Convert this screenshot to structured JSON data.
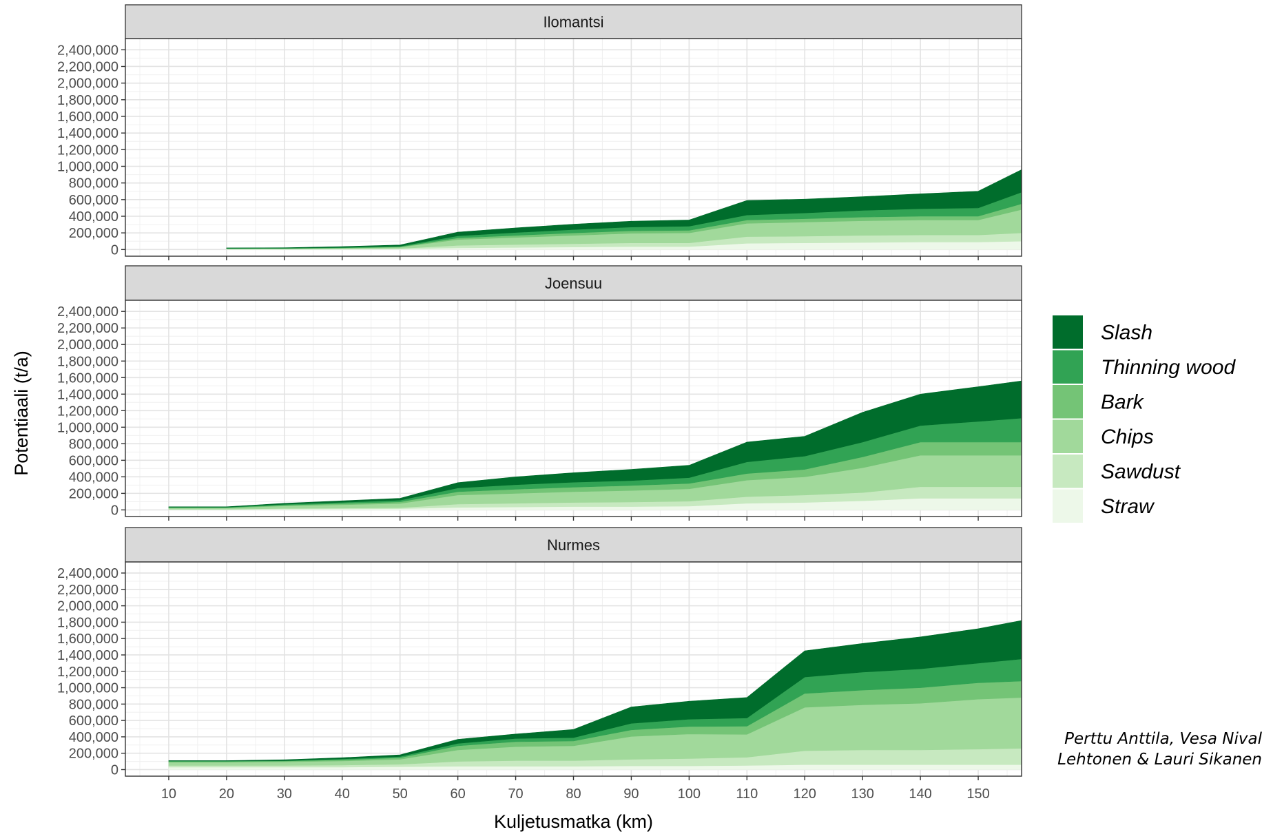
{
  "chart_data": {
    "type": "area",
    "stacked": true,
    "xlabel": "Kuljetusmatka (km)",
    "ylabel": "Potentiaali (t/a)",
    "xlim": [
      2.5,
      157.5
    ],
    "ylim": [
      -80000,
      2535000
    ],
    "x_ticks": [
      10,
      20,
      30,
      40,
      50,
      60,
      70,
      80,
      90,
      100,
      110,
      120,
      130,
      140,
      150
    ],
    "y_ticks": [
      0,
      200000,
      400000,
      600000,
      800000,
      1000000,
      1200000,
      1400000,
      1600000,
      1800000,
      2000000,
      2200000,
      2400000
    ],
    "y_tick_labels": [
      "0",
      "200,000",
      "400,000",
      "600,000",
      "800,000",
      "1,000,000",
      "1,200,000",
      "1,400,000",
      "1,600,000",
      "1,800,000",
      "2,000,000",
      "2,200,000",
      "2,400,000"
    ],
    "grid": true,
    "legend_position": "right",
    "legend": [
      "Slash",
      "Thinning wood",
      "Bark",
      "Chips",
      "Sawdust",
      "Straw"
    ],
    "series_colors": {
      "Straw": "#edf8e9",
      "Sawdust": "#c7e9c0",
      "Chips": "#a1d99b",
      "Bark": "#74c476",
      "Thinning wood": "#31a354",
      "Slash": "#006d2c"
    },
    "panels": [
      {
        "title": "Ilomantsi",
        "x": [
          20,
          30,
          40,
          50,
          60,
          70,
          80,
          90,
          100,
          110,
          120,
          130,
          140,
          150,
          157.5
        ],
        "series": [
          {
            "name": "Straw",
            "values": [
              3000,
              3000,
              5000,
              8000,
              20000,
              25000,
              30000,
              35000,
              35000,
              75000,
              80000,
              85000,
              90000,
              90000,
              100000
            ]
          },
          {
            "name": "Sawdust",
            "values": [
              2000,
              2000,
              3000,
              5000,
              30000,
              35000,
              40000,
              45000,
              45000,
              80000,
              80000,
              85000,
              85000,
              85000,
              100000
            ]
          },
          {
            "name": "Chips",
            "values": [
              5000,
              7000,
              10000,
              15000,
              70000,
              85000,
              100000,
              115000,
              120000,
              160000,
              170000,
              175000,
              180000,
              180000,
              280000
            ]
          },
          {
            "name": "Bark",
            "values": [
              2000,
              2000,
              3000,
              5000,
              20000,
              25000,
              30000,
              30000,
              30000,
              40000,
              40000,
              45000,
              45000,
              45000,
              70000
            ]
          },
          {
            "name": "Thinning wood",
            "values": [
              3000,
              3000,
              5000,
              7000,
              25000,
              35000,
              40000,
              45000,
              50000,
              60000,
              70000,
              80000,
              90000,
              100000,
              140000
            ]
          },
          {
            "name": "Slash",
            "values": [
              5000,
              5000,
              10000,
              15000,
              45000,
              55000,
              65000,
              70000,
              75000,
              175000,
              165000,
              165000,
              180000,
              200000,
              270000
            ]
          }
        ]
      },
      {
        "title": "Joensuu",
        "x": [
          10,
          20,
          30,
          40,
          50,
          60,
          70,
          80,
          90,
          100,
          110,
          120,
          130,
          140,
          150,
          157.5
        ],
        "series": [
          {
            "name": "Straw",
            "values": [
              5000,
              5000,
              10000,
              12000,
              15000,
              30000,
              35000,
              40000,
              40000,
              45000,
              80000,
              90000,
              110000,
              140000,
              140000,
              140000
            ]
          },
          {
            "name": "Sawdust",
            "values": [
              3000,
              3000,
              8000,
              10000,
              12000,
              40000,
              45000,
              50000,
              55000,
              60000,
              80000,
              90000,
              100000,
              140000,
              140000,
              140000
            ]
          },
          {
            "name": "Chips",
            "values": [
              15000,
              15000,
              30000,
              40000,
              50000,
              110000,
              120000,
              130000,
              140000,
              150000,
              200000,
              220000,
              300000,
              380000,
              380000,
              380000
            ]
          },
          {
            "name": "Bark",
            "values": [
              5000,
              5000,
              10000,
              15000,
              20000,
              40000,
              50000,
              55000,
              60000,
              65000,
              80000,
              90000,
              130000,
              160000,
              160000,
              160000
            ]
          },
          {
            "name": "Thinning wood",
            "values": [
              5000,
              5000,
              10000,
              15000,
              20000,
              45000,
              55000,
              60000,
              60000,
              70000,
              140000,
              160000,
              180000,
              200000,
              250000,
              290000
            ]
          },
          {
            "name": "Slash",
            "values": [
              5000,
              5000,
              12000,
              18000,
              23000,
              65000,
              95000,
              115000,
              135000,
              150000,
              240000,
              240000,
              360000,
              380000,
              420000,
              450000
            ]
          }
        ]
      },
      {
        "title": "Nurmes",
        "x": [
          10,
          20,
          30,
          40,
          50,
          60,
          70,
          80,
          90,
          100,
          110,
          120,
          130,
          140,
          150,
          157.5
        ],
        "series": [
          {
            "name": "Straw",
            "values": [
              30000,
              30000,
              30000,
              30000,
              35000,
              40000,
              40000,
              40000,
              45000,
              45000,
              50000,
              60000,
              60000,
              60000,
              60000,
              60000
            ]
          },
          {
            "name": "Sawdust",
            "values": [
              20000,
              20000,
              20000,
              25000,
              30000,
              60000,
              70000,
              70000,
              80000,
              90000,
              100000,
              170000,
              180000,
              180000,
              190000,
              200000
            ]
          },
          {
            "name": "Chips",
            "values": [
              40000,
              40000,
              45000,
              50000,
              60000,
              140000,
              170000,
              180000,
              280000,
              300000,
              280000,
              530000,
              550000,
              570000,
              610000,
              620000
            ]
          },
          {
            "name": "Bark",
            "values": [
              10000,
              10000,
              10000,
              15000,
              20000,
              50000,
              60000,
              60000,
              80000,
              90000,
              100000,
              170000,
              180000,
              190000,
              200000,
              200000
            ]
          },
          {
            "name": "Thinning wood",
            "values": [
              5000,
              5000,
              5000,
              10000,
              15000,
              30000,
              40000,
              40000,
              80000,
              90000,
              100000,
              200000,
              220000,
              230000,
              240000,
              270000
            ]
          },
          {
            "name": "Slash",
            "values": [
              5000,
              5000,
              10000,
              15000,
              20000,
              50000,
              55000,
              100000,
              200000,
              220000,
              250000,
              320000,
              350000,
              390000,
              420000,
              470000
            ]
          }
        ]
      }
    ]
  },
  "credit": {
    "line1": "Perttu Anttila, Vesa Nival",
    "line2": "Lehtonen & Lauri Sikanen"
  }
}
